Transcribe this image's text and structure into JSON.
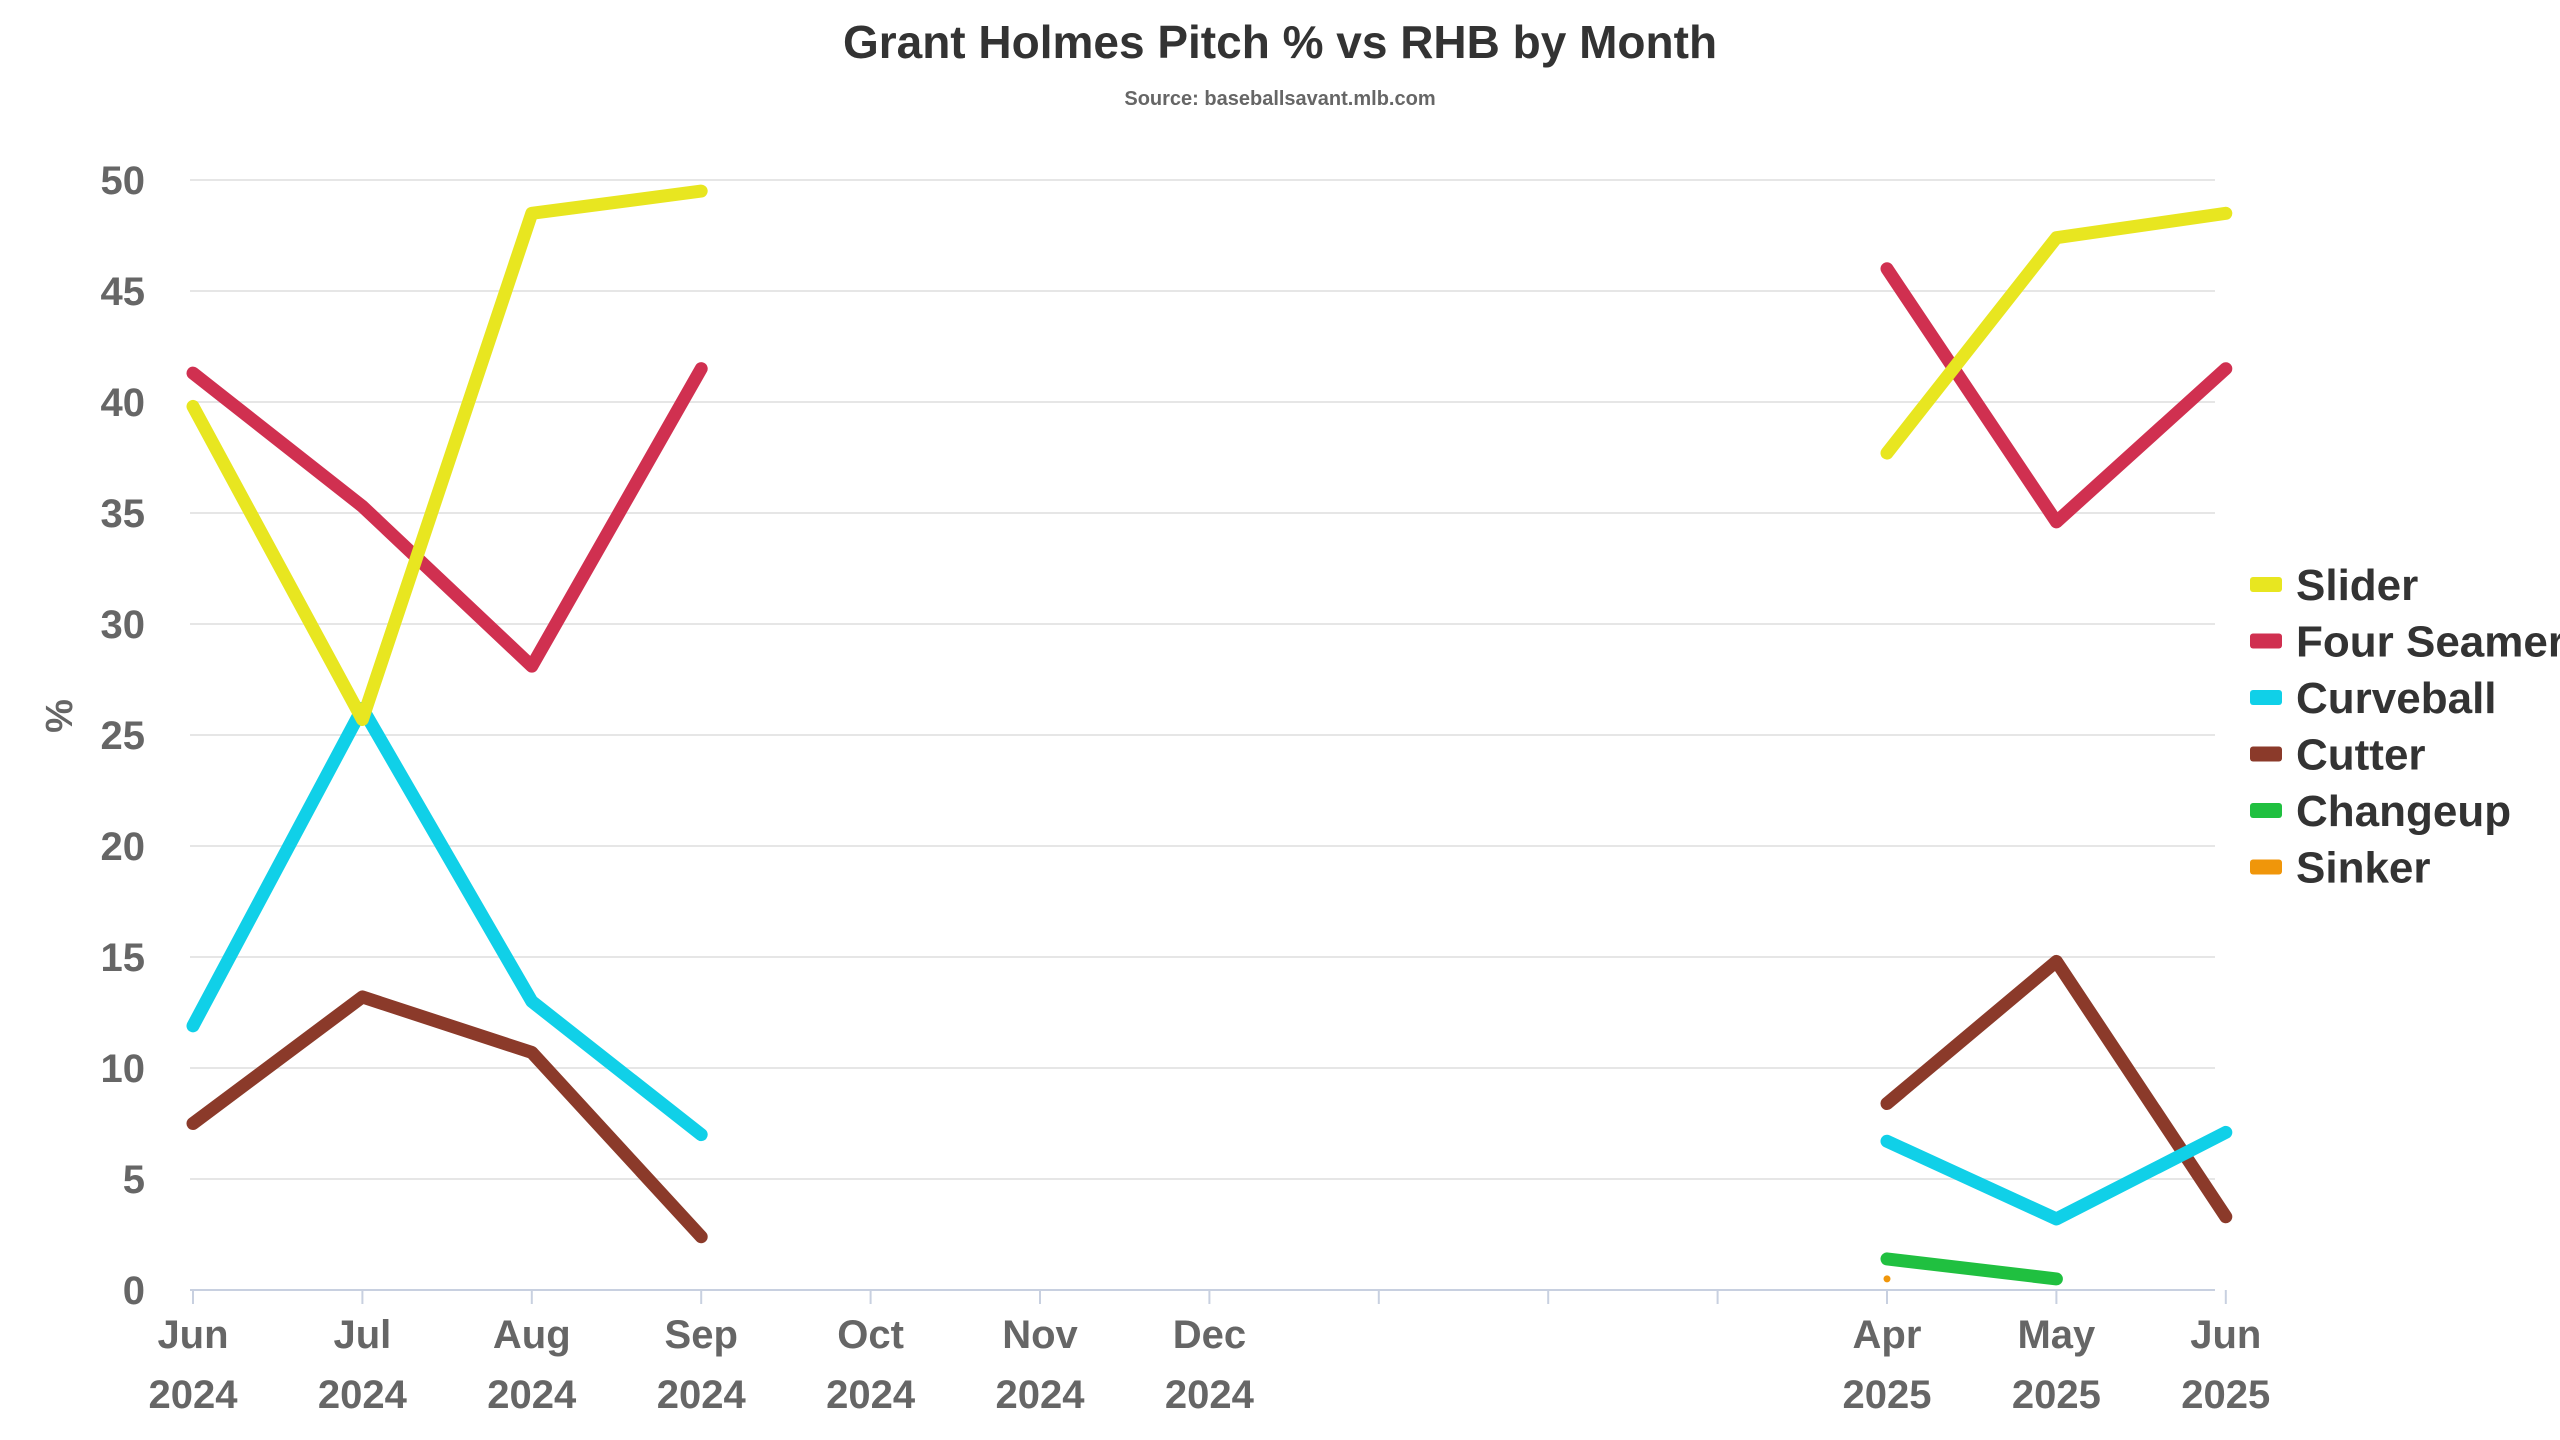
{
  "chart_data": {
    "type": "line",
    "title": "Grant Holmes Pitch % vs RHB by Month",
    "subtitle": "Source: baseballsavant.mlb.com",
    "xlabel": "",
    "ylabel": "%",
    "ylim": [
      0,
      50
    ],
    "y_ticks": [
      "0",
      "5",
      "10",
      "15",
      "20",
      "25",
      "30",
      "35",
      "40",
      "45",
      "50"
    ],
    "grid": true,
    "legend_position": "right",
    "x_axis": [
      {
        "month": "Jun",
        "year": "2024"
      },
      {
        "month": "Jul",
        "year": "2024"
      },
      {
        "month": "Aug",
        "year": "2024"
      },
      {
        "month": "Sep",
        "year": "2024"
      },
      {
        "month": "Oct",
        "year": "2024"
      },
      {
        "month": "Nov",
        "year": "2024"
      },
      {
        "month": "Dec",
        "year": "2024"
      },
      {
        "month": "",
        "year": ""
      },
      {
        "month": "",
        "year": ""
      },
      {
        "month": "",
        "year": ""
      },
      {
        "month": "Apr",
        "year": "2025"
      },
      {
        "month": "May",
        "year": "2025"
      },
      {
        "month": "Jun",
        "year": "2025"
      }
    ],
    "series": [
      {
        "name": "Slider",
        "color": "#e8e620",
        "values": [
          39.8,
          25.7,
          48.5,
          49.5,
          null,
          null,
          null,
          null,
          null,
          null,
          37.7,
          47.4,
          48.5
        ]
      },
      {
        "name": "Four Seamer",
        "color": "#d03050",
        "values": [
          41.3,
          35.3,
          28.1,
          41.5,
          null,
          null,
          null,
          null,
          null,
          null,
          46.0,
          34.6,
          41.5
        ]
      },
      {
        "name": "Curveball",
        "color": "#10d0e8",
        "values": [
          11.9,
          26.2,
          13.0,
          7.0,
          null,
          null,
          null,
          null,
          null,
          null,
          6.7,
          3.2,
          7.1
        ]
      },
      {
        "name": "Cutter",
        "color": "#8b3a2a",
        "values": [
          7.5,
          13.2,
          10.7,
          2.4,
          null,
          null,
          null,
          null,
          null,
          null,
          8.4,
          14.8,
          3.3
        ]
      },
      {
        "name": "Changeup",
        "color": "#20c040",
        "values": [
          null,
          null,
          null,
          null,
          null,
          null,
          null,
          null,
          null,
          null,
          1.4,
          0.5,
          null
        ]
      },
      {
        "name": "Sinker",
        "color": "#f0960a",
        "values": [
          null,
          null,
          null,
          null,
          null,
          null,
          null,
          null,
          null,
          null,
          0.5,
          null,
          null
        ]
      }
    ]
  }
}
